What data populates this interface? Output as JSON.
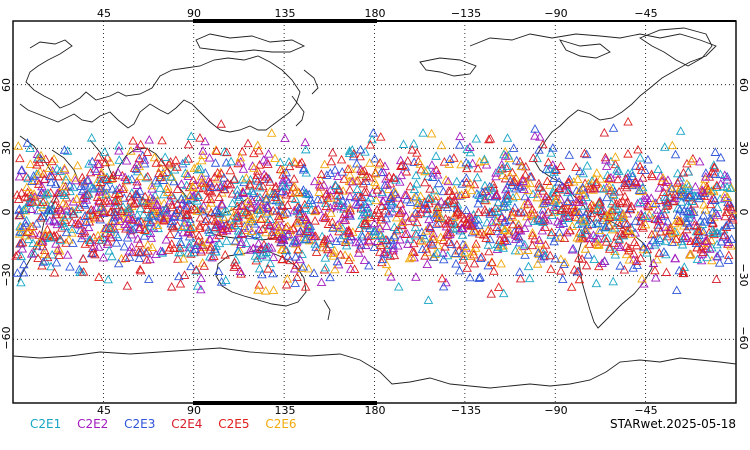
{
  "chart_data": {
    "type": "scatter",
    "projection": "equirectangular",
    "xlim": [
      0,
      360
    ],
    "ylim": [
      -90,
      90
    ],
    "grid": true,
    "marker": "open-triangle",
    "x_tick_labels": [
      "45",
      "90",
      "135",
      "180",
      "−135",
      "−90",
      "−45"
    ],
    "y_tick_labels_left": [
      "60",
      "30",
      "0",
      "−30",
      "−60"
    ],
    "y_tick_labels_right": [
      "60",
      "30",
      "0",
      "−30",
      "−60"
    ],
    "latitude_band": [
      -45,
      45
    ],
    "series": [
      {
        "name": "C2E1",
        "color": "#19a6c5"
      },
      {
        "name": "C2E2",
        "color": "#a21bbf"
      },
      {
        "name": "C2E3",
        "color": "#2f55d9"
      },
      {
        "name": "C2E4",
        "color": "#d61c2a"
      },
      {
        "name": "C2E5",
        "color": "#e0201d"
      },
      {
        "name": "C2E6",
        "color": "#f2a90c"
      }
    ]
  },
  "legend": {
    "items": [
      {
        "label": "C2E1",
        "color": "#19a6c5"
      },
      {
        "label": "C2E2",
        "color": "#a21bbf"
      },
      {
        "label": "C2E3",
        "color": "#2f55d9"
      },
      {
        "label": "C2E4",
        "color": "#d61c2a"
      },
      {
        "label": "C2E5",
        "color": "#e0201d"
      },
      {
        "label": "C2E6",
        "color": "#f2a90c"
      }
    ]
  },
  "footer": {
    "stamp": "STARwet.2025-05-18"
  }
}
